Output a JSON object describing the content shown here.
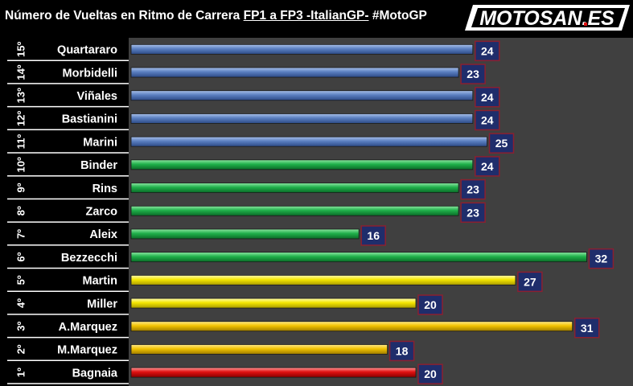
{
  "title": {
    "part1": "Número de Vueltas en Ritmo de Carrera ",
    "part2": "FP1 a FP3 -ItalianGP-",
    "part3": " #MotoGP"
  },
  "logo": {
    "text": "MOTOSAN.ES"
  },
  "colors": {
    "plot_bg": "#404040",
    "label_bg": "#000000",
    "value_box": "#1f2d6b",
    "value_border": "#8a2030",
    "blue": "#5a7fc0",
    "green": "#1fb04a",
    "yellow": "#f5e600",
    "amber": "#f2c200",
    "red": "#e01010"
  },
  "chart_data": {
    "type": "bar",
    "orientation": "horizontal",
    "title": "Número de Vueltas en Ritmo de Carrera FP1 a FP3 -ItalianGP- #MotoGP",
    "xlim": [
      0,
      34
    ],
    "grid": false,
    "rows": [
      {
        "position": "15º",
        "rider": "Quartararo",
        "value": 24,
        "color": "blue"
      },
      {
        "position": "14º",
        "rider": "Morbidelli",
        "value": 23,
        "color": "blue"
      },
      {
        "position": "13º",
        "rider": "Viñales",
        "value": 24,
        "color": "blue"
      },
      {
        "position": "12º",
        "rider": "Bastianini",
        "value": 24,
        "color": "blue"
      },
      {
        "position": "11º",
        "rider": "Marini",
        "value": 25,
        "color": "blue"
      },
      {
        "position": "10º",
        "rider": "Binder",
        "value": 24,
        "color": "green"
      },
      {
        "position": "9º",
        "rider": "Rins",
        "value": 23,
        "color": "green"
      },
      {
        "position": "8º",
        "rider": "Zarco",
        "value": 23,
        "color": "green"
      },
      {
        "position": "7º",
        "rider": "Aleix",
        "value": 16,
        "color": "green"
      },
      {
        "position": "6º",
        "rider": "Bezzecchi",
        "value": 32,
        "color": "green"
      },
      {
        "position": "5º",
        "rider": "Martin",
        "value": 27,
        "color": "yellow"
      },
      {
        "position": "4º",
        "rider": "Miller",
        "value": 20,
        "color": "yellow"
      },
      {
        "position": "3º",
        "rider": "A.Marquez",
        "value": 31,
        "color": "amber"
      },
      {
        "position": "2º",
        "rider": "M.Marquez",
        "value": 18,
        "color": "amber"
      },
      {
        "position": "1º",
        "rider": "Bagnaia",
        "value": 20,
        "color": "red"
      }
    ]
  }
}
